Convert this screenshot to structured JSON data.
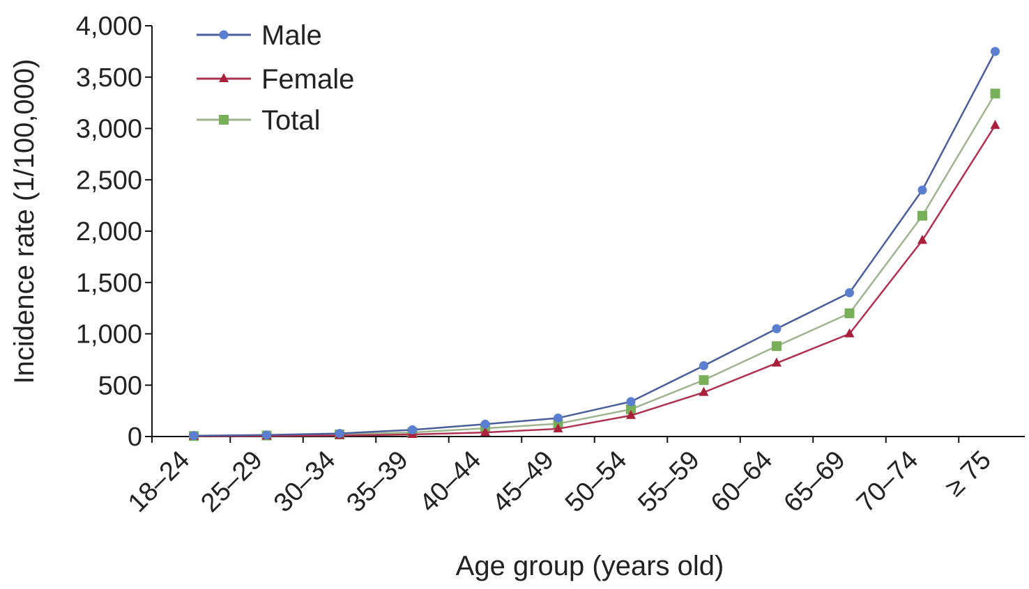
{
  "chart_data": {
    "type": "line",
    "title": "",
    "xlabel": "Age group (years old)",
    "ylabel": "Incidence rate (1/100,000)",
    "categories": [
      "18–24",
      "25–29",
      "30–34",
      "35–39",
      "40–44",
      "45–49",
      "50–54",
      "55–59",
      "60–64",
      "65–69",
      "70–74",
      "≥ 75"
    ],
    "ylim": [
      0,
      4000
    ],
    "yticks": [
      0,
      500,
      1000,
      1500,
      2000,
      2500,
      3000,
      3500,
      4000
    ],
    "ytick_labels": [
      "0",
      "500",
      "1,000",
      "1,500",
      "2,000",
      "2,500",
      "3,000",
      "3,500",
      "4,000"
    ],
    "grid": false,
    "legend_position": "top-left",
    "series": [
      {
        "name": "Male",
        "color": "#4a5e9a",
        "marker_color": "#5b7fd0",
        "marker": "circle",
        "values": [
          8,
          15,
          30,
          65,
          120,
          180,
          340,
          690,
          1050,
          1400,
          2400,
          3750
        ]
      },
      {
        "name": "Female",
        "color": "#b03050",
        "marker_color": "#a8203a",
        "marker": "triangle",
        "values": [
          3,
          5,
          10,
          20,
          40,
          75,
          205,
          430,
          715,
          1000,
          1910,
          3030
        ]
      },
      {
        "name": "Total",
        "color": "#9fb38f",
        "marker_color": "#78b05a",
        "marker": "square",
        "values": [
          5,
          10,
          20,
          40,
          80,
          125,
          265,
          550,
          880,
          1200,
          2150,
          3340
        ]
      }
    ]
  }
}
